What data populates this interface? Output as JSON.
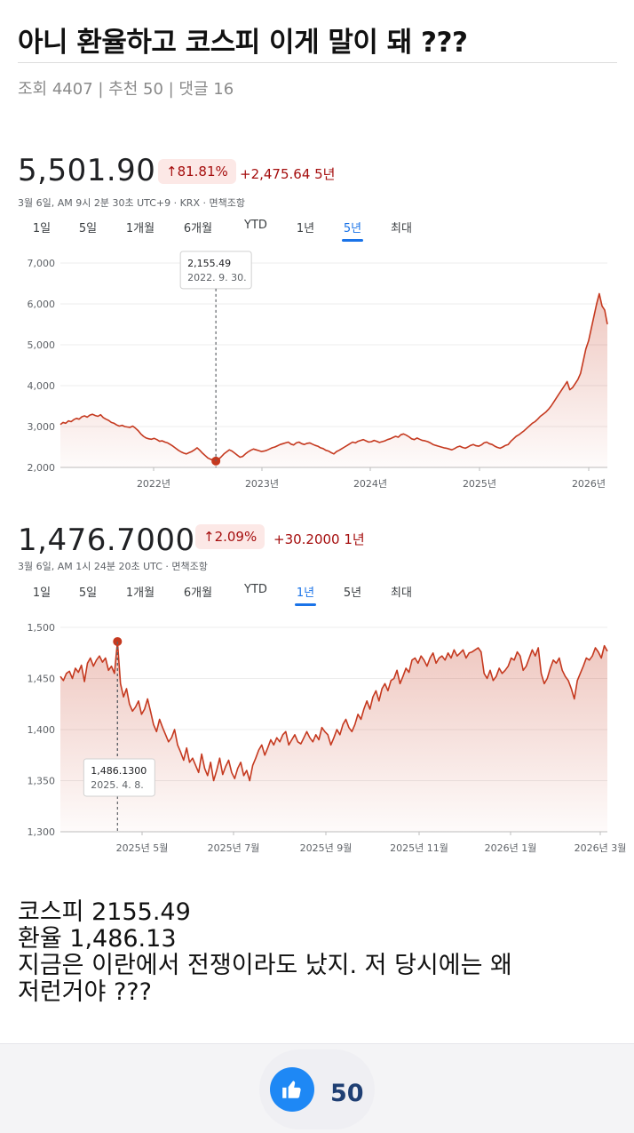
{
  "post": {
    "title": "아니 환율하고 코스피 이게 말이 돼 ???",
    "meta": "조회 4407 | 추천 50 | 댓글 16"
  },
  "quotes": [
    {
      "price": "5,501.90",
      "change_pct": "↑81.81%",
      "change_abs": "+2,475.64 5년",
      "timestamp": "3월 6일, AM 9시 2분 30초 UTC+9 · KRX · 면책조항",
      "tabs": [
        "1일",
        "5일",
        "1개월",
        "6개월",
        "YTD",
        "1년",
        "5년",
        "최대"
      ],
      "active_tab": "5년",
      "tooltip": {
        "value": "2,155.49",
        "date": "2022. 9. 30."
      }
    },
    {
      "price": "1,476.7000",
      "change_pct": "↑2.09%",
      "change_abs": "+30.2000 1년",
      "timestamp": "3월 6일, AM 1시 24분 20초 UTC · 면책조항",
      "tabs": [
        "1일",
        "5일",
        "1개월",
        "6개월",
        "YTD",
        "1년",
        "5년",
        "최대"
      ],
      "active_tab": "1년",
      "tooltip": {
        "value": "1,486.1300",
        "date": "2025. 4. 8."
      }
    }
  ],
  "chart_data": [
    {
      "type": "line",
      "series": [
        {
          "values": [
            3050,
            3100,
            3080,
            3140,
            3120,
            3170,
            3200,
            3180,
            3240,
            3260,
            3230,
            3280,
            3300,
            3270,
            3250,
            3290,
            3220,
            3180,
            3150,
            3100,
            3080,
            3040,
            3010,
            3030,
            3000,
            2990,
            2980,
            3010,
            2960,
            2900,
            2820,
            2760,
            2720,
            2700,
            2690,
            2710,
            2680,
            2640,
            2650,
            2620,
            2600,
            2560,
            2520,
            2470,
            2420,
            2380,
            2350,
            2330,
            2360,
            2390,
            2430,
            2480,
            2420,
            2350,
            2290,
            2230,
            2200,
            2180,
            2155,
            2200,
            2260,
            2330,
            2380,
            2430,
            2400,
            2350,
            2300,
            2250,
            2270,
            2330,
            2380,
            2420,
            2450,
            2430,
            2410,
            2390,
            2400,
            2420,
            2450,
            2480,
            2500,
            2530,
            2560,
            2580,
            2600,
            2620,
            2570,
            2550,
            2600,
            2620,
            2580,
            2560,
            2590,
            2600,
            2570,
            2540,
            2520,
            2480,
            2460,
            2420,
            2400,
            2360,
            2330,
            2390,
            2420,
            2460,
            2500,
            2540,
            2580,
            2620,
            2600,
            2640,
            2660,
            2680,
            2650,
            2620,
            2630,
            2660,
            2640,
            2610,
            2630,
            2650,
            2680,
            2700,
            2730,
            2760,
            2740,
            2800,
            2820,
            2790,
            2750,
            2700,
            2680,
            2720,
            2690,
            2660,
            2650,
            2630,
            2600,
            2560,
            2540,
            2520,
            2500,
            2480,
            2470,
            2450,
            2430,
            2460,
            2500,
            2520,
            2490,
            2470,
            2500,
            2540,
            2560,
            2530,
            2520,
            2550,
            2600,
            2620,
            2580,
            2560,
            2520,
            2490,
            2470,
            2500,
            2540,
            2560,
            2640,
            2700,
            2760,
            2800,
            2850,
            2900,
            2960,
            3020,
            3080,
            3120,
            3180,
            3250,
            3300,
            3350,
            3420,
            3500,
            3600,
            3700,
            3800,
            3900,
            4000,
            4100,
            3900,
            3950,
            4050,
            4150,
            4300,
            4600,
            4900,
            5100,
            5400,
            5700,
            6000,
            6250,
            5950,
            5850,
            5501.9
          ]
        }
      ],
      "x_axis_labels": [
        "2022년",
        "2023년",
        "2024년",
        "2025년",
        "2026년"
      ],
      "y_axis_labels": [
        "7,000",
        "6,000",
        "5,000",
        "4,000",
        "3,000",
        "2,000"
      ],
      "ylim": [
        2000,
        7000
      ],
      "highlight": {
        "index": 58,
        "value": 2155.49
      },
      "color": "#c5391f"
    },
    {
      "type": "line",
      "series": [
        {
          "values": [
            1452,
            1448,
            1455,
            1457,
            1450,
            1460,
            1456,
            1463,
            1447,
            1465,
            1470,
            1462,
            1468,
            1472,
            1466,
            1470,
            1458,
            1462,
            1455,
            1486.13,
            1445,
            1432,
            1440,
            1425,
            1418,
            1422,
            1428,
            1415,
            1420,
            1430,
            1418,
            1405,
            1398,
            1410,
            1402,
            1395,
            1388,
            1392,
            1400,
            1385,
            1378,
            1370,
            1382,
            1368,
            1372,
            1365,
            1358,
            1376,
            1362,
            1355,
            1368,
            1350,
            1360,
            1372,
            1356,
            1364,
            1370,
            1358,
            1352,
            1362,
            1368,
            1355,
            1360,
            1350,
            1365,
            1372,
            1380,
            1385,
            1375,
            1382,
            1390,
            1385,
            1392,
            1388,
            1395,
            1398,
            1385,
            1390,
            1395,
            1388,
            1386,
            1392,
            1398,
            1392,
            1388,
            1395,
            1390,
            1402,
            1398,
            1395,
            1385,
            1392,
            1400,
            1395,
            1405,
            1410,
            1402,
            1398,
            1405,
            1415,
            1410,
            1420,
            1428,
            1420,
            1432,
            1438,
            1428,
            1440,
            1445,
            1438,
            1448,
            1450,
            1458,
            1445,
            1452,
            1460,
            1456,
            1468,
            1470,
            1465,
            1472,
            1468,
            1462,
            1470,
            1475,
            1465,
            1470,
            1472,
            1468,
            1475,
            1470,
            1478,
            1472,
            1475,
            1478,
            1470,
            1475,
            1476,
            1478,
            1480,
            1476,
            1455,
            1450,
            1458,
            1448,
            1452,
            1460,
            1455,
            1458,
            1462,
            1470,
            1468,
            1476,
            1472,
            1458,
            1462,
            1470,
            1478,
            1472,
            1480,
            1455,
            1445,
            1450,
            1460,
            1468,
            1465,
            1470,
            1458,
            1452,
            1448,
            1440,
            1430,
            1448,
            1455,
            1462,
            1470,
            1468,
            1472,
            1480,
            1476,
            1470,
            1482,
            1476.7
          ]
        }
      ],
      "x_axis_labels": [
        "2025년 5월",
        "2025년 7월",
        "2025년 9월",
        "2025년 11월",
        "2026년 1월",
        "2026년 3월"
      ],
      "y_axis_labels": [
        "1,500",
        "1,450",
        "1,400",
        "1,350",
        "1,300"
      ],
      "ylim": [
        1300,
        1500
      ],
      "highlight": {
        "index": 19,
        "value": 1486.13
      },
      "color": "#c5391f"
    }
  ],
  "body": {
    "lines": [
      "코스피 2155.49",
      "환율 1,486.13",
      "지금은 이란에서 전쟁이라도 났지. 저 당시에는 왜",
      "저런거야 ???"
    ]
  },
  "footer": {
    "like_count": "50",
    "icon": "thumbs-up-icon"
  }
}
